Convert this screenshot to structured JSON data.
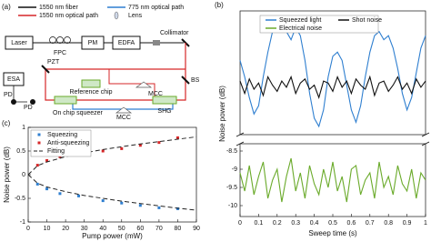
{
  "diagram": {
    "label": "(a)",
    "legend": [
      "1550 nm fiber",
      "1550 nm optical path",
      "775 nm optical path",
      "Lens"
    ],
    "labels": {
      "laser": "Laser",
      "fpc": "FPC",
      "pm": "PM",
      "edfa": "EDFA",
      "collimator": "Collimator",
      "pzt": "PZT",
      "esa": "ESA",
      "pd1": "PD",
      "pd2": "PD",
      "reference": "Reference chip",
      "mcc1": "MCC",
      "mcc2": "MCC",
      "bs": "BS",
      "squeezer": "On chip squeezer",
      "shg": "SHG"
    }
  },
  "chart_data": [
    {
      "type": "line",
      "label": "(b)",
      "xlabel": "Sweep time (s)",
      "ylabel": "Noise power (dB)",
      "x": [
        0,
        0.025,
        0.05,
        0.075,
        0.1,
        0.125,
        0.15,
        0.175,
        0.2,
        0.225,
        0.25,
        0.275,
        0.3,
        0.325,
        0.35,
        0.375,
        0.4,
        0.425,
        0.45,
        0.475,
        0.5,
        0.525,
        0.55,
        0.575,
        0.6,
        0.625,
        0.65,
        0.675,
        0.7,
        0.725,
        0.75,
        0.775,
        0.8,
        0.825,
        0.85,
        0.875,
        0.9,
        0.925,
        0.95,
        0.975,
        1
      ],
      "xlim": [
        0,
        1
      ],
      "xticks": [
        0,
        0.1,
        0.2,
        0.3,
        0.4,
        0.5,
        0.6,
        0.7,
        0.8,
        0.9,
        1
      ],
      "ylim": [
        -1.2,
        1.8
      ],
      "ylim_lower": [
        -10.3,
        -8.3
      ],
      "yticks_lower": [
        -10,
        -9.5,
        -9,
        -8.5
      ],
      "broken_axis": true,
      "series": [
        {
          "name": "Squeezed light",
          "color": "#2f7fd0",
          "values": [
            0.6,
            0.2,
            -0.3,
            -0.7,
            -0.5,
            0.2,
            0.8,
            1.3,
            1.4,
            1.5,
            1.3,
            1.1,
            1.4,
            1.2,
            0.6,
            -0.2,
            -0.8,
            -1,
            -0.6,
            0.2,
            0.7,
            0.8,
            0.6,
            0,
            -0.6,
            -0.9,
            -0.5,
            0.2,
            0.8,
            1.2,
            1.3,
            1.1,
            1.2,
            0.9,
            0.4,
            -0.2,
            -0.6,
            -0.3,
            0.3,
            0.9,
            1.2
          ]
        },
        {
          "name": "Shot noise",
          "color": "#111111",
          "values": [
            0.1,
            -0.2,
            0.15,
            -0.1,
            0.05,
            -0.25,
            0.2,
            0,
            -0.15,
            0.1,
            -0.05,
            0.2,
            -0.2,
            0.05,
            0.15,
            -0.1,
            0,
            -0.3,
            0.1,
            0.05,
            -0.15,
            0.2,
            -0.05,
            0.1,
            -0.2,
            0.15,
            0,
            -0.1,
            0.2,
            -0.25,
            0.05,
            0.1,
            -0.15,
            0,
            0.2,
            -0.1,
            0.05,
            -0.2,
            0.15,
            -0.05,
            0.1
          ]
        },
        {
          "name": "Electrical noise",
          "color": "#6aaa2a",
          "segment": "lower",
          "values": [
            -9.1,
            -9.6,
            -8.9,
            -9.7,
            -9.2,
            -8.8,
            -9.8,
            -9.3,
            -9,
            -9.9,
            -9.2,
            -8.7,
            -9.6,
            -9.1,
            -9.8,
            -8.9,
            -9.4,
            -9.7,
            -9,
            -9.5,
            -8.8,
            -9.6,
            -9.2,
            -9.9,
            -9,
            -8.9,
            -9.7,
            -9.3,
            -9.1,
            -9.8,
            -8.8,
            -9.5,
            -9.2,
            -9.7,
            -8.9,
            -9.4,
            -9.6,
            -9,
            -9.8,
            -9.1,
            -9.3
          ]
        }
      ]
    },
    {
      "type": "scatter",
      "label": "(c)",
      "xlabel": "Pump power (mW)",
      "ylabel": "Noise power (dB)",
      "xlim": [
        0,
        90
      ],
      "xticks": [
        0,
        10,
        20,
        30,
        40,
        50,
        60,
        70,
        80,
        90
      ],
      "ylim": [
        -1,
        1
      ],
      "yticks": [
        -1,
        -0.5,
        0,
        0.5,
        1
      ],
      "series": [
        {
          "name": "Squeezing",
          "color": "#2f7fd0",
          "x": [
            5,
            10,
            17,
            27,
            40,
            50,
            60,
            70,
            80
          ],
          "values": [
            -0.2,
            -0.3,
            -0.4,
            -0.45,
            -0.55,
            -0.6,
            -0.65,
            -0.7,
            -0.72
          ]
        },
        {
          "name": "Anti-squeezing",
          "color": "#d62728",
          "x": [
            5,
            10,
            17,
            27,
            40,
            50,
            60,
            70,
            80
          ],
          "values": [
            0.2,
            0.3,
            0.38,
            0.42,
            0.5,
            0.55,
            0.62,
            0.68,
            0.78
          ]
        },
        {
          "name": "Fitting",
          "color": "#222222",
          "x": [
            0,
            5,
            10,
            20,
            30,
            40,
            50,
            60,
            70,
            80,
            90
          ],
          "upper": [
            0,
            0.19,
            0.27,
            0.38,
            0.46,
            0.53,
            0.59,
            0.65,
            0.7,
            0.75,
            0.8
          ],
          "lower": [
            0,
            -0.18,
            -0.26,
            -0.36,
            -0.44,
            -0.5,
            -0.56,
            -0.61,
            -0.66,
            -0.71,
            -0.75
          ]
        }
      ]
    }
  ]
}
